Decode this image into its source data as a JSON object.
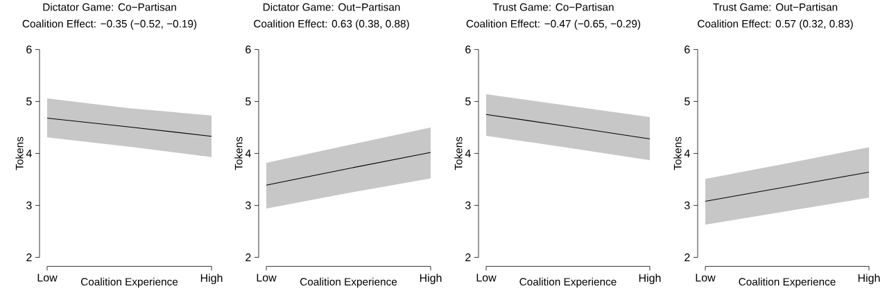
{
  "chart_data": [
    {
      "type": "line",
      "title": "Dictator Game: Co−Partisan",
      "subtitle": "Coalition Effect: −0.35 (−0.52, −0.19)",
      "xlabel": "Coalition Experience",
      "ylabel": "Tokens",
      "categories": [
        "Low",
        null,
        "High"
      ],
      "ylim": [
        2,
        6
      ],
      "yticks": [
        2,
        3,
        4,
        5,
        6
      ],
      "series": [
        {
          "color": "#000000",
          "values": [
            4.68,
            4.51,
            4.33
          ],
          "lower": [
            4.31,
            4.13,
            3.93
          ],
          "upper": [
            5.06,
            4.87,
            4.73
          ]
        }
      ]
    },
    {
      "type": "line",
      "title": "Dictator Game: Out−Partisan",
      "subtitle": "Coalition Effect: 0.63 (0.38, 0.88)",
      "xlabel": "Coalition Experience",
      "ylabel": "Tokens",
      "categories": [
        "Low",
        null,
        "High"
      ],
      "ylim": [
        2,
        6
      ],
      "yticks": [
        2,
        3,
        4,
        5,
        6
      ],
      "series": [
        {
          "color": "#000000",
          "values": [
            3.39,
            3.71,
            4.02
          ],
          "lower": [
            2.94,
            3.24,
            3.52
          ],
          "upper": [
            3.82,
            4.16,
            4.5
          ]
        }
      ]
    },
    {
      "type": "line",
      "title": "Trust Game: Co−Partisan",
      "subtitle": "Coalition Effect: −0.47 (−0.65, −0.29)",
      "xlabel": "Coalition Experience",
      "ylabel": "Tokens",
      "categories": [
        "Low",
        null,
        "High"
      ],
      "ylim": [
        2,
        6
      ],
      "yticks": [
        2,
        3,
        4,
        5,
        6
      ],
      "series": [
        {
          "color": "#000000",
          "values": [
            4.75,
            4.52,
            4.28
          ],
          "lower": [
            4.34,
            4.11,
            3.87
          ],
          "upper": [
            5.14,
            4.92,
            4.7
          ]
        }
      ]
    },
    {
      "type": "line",
      "title": "Trust Game: Out−Partisan",
      "subtitle": "Coalition Effect: 0.57 (0.32, 0.83)",
      "xlabel": "Coalition Experience",
      "ylabel": "Tokens",
      "categories": [
        "Low",
        null,
        "High"
      ],
      "ylim": [
        2,
        6
      ],
      "yticks": [
        2,
        3,
        4,
        5,
        6
      ],
      "series": [
        {
          "color": "#000000",
          "values": [
            3.08,
            3.36,
            3.64
          ],
          "lower": [
            2.63,
            2.89,
            3.15
          ],
          "upper": [
            3.51,
            3.81,
            4.12
          ]
        }
      ]
    }
  ]
}
